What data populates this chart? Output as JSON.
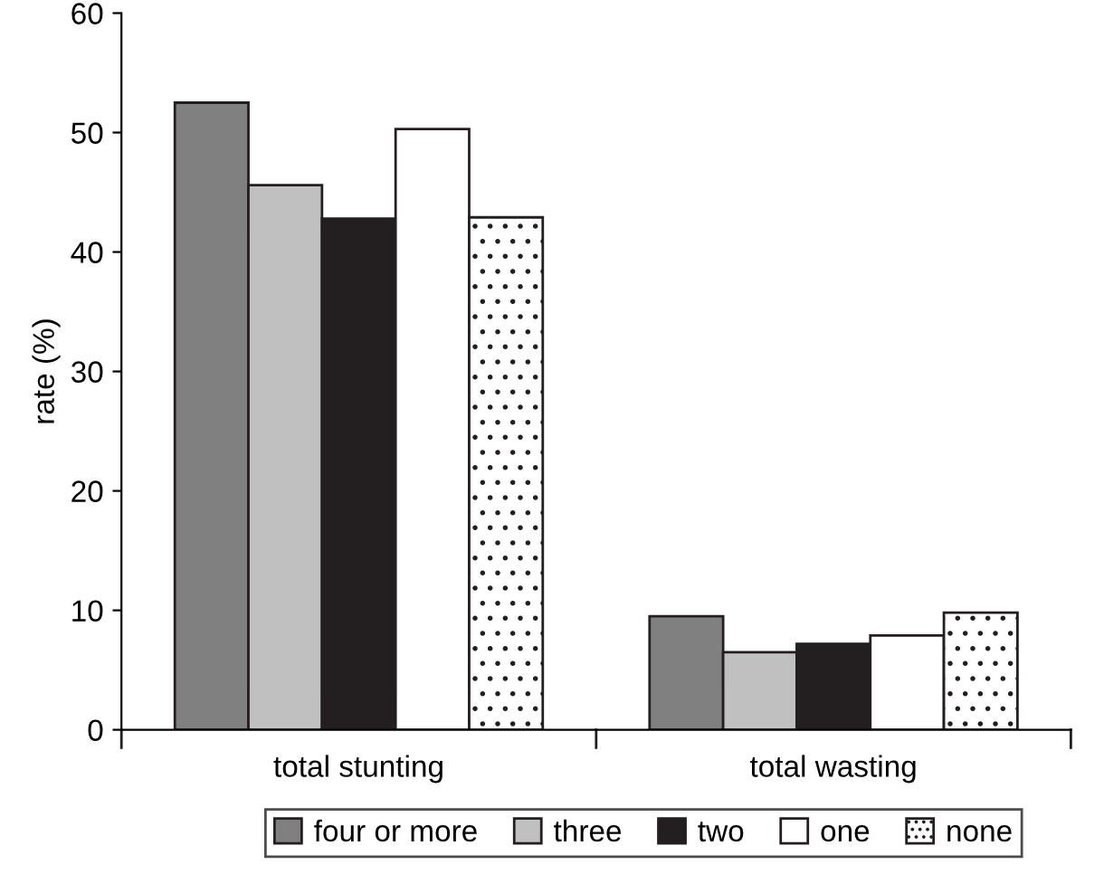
{
  "chart_data": {
    "type": "bar",
    "ylabel": "rate (%)",
    "categories": [
      "total stunting",
      "total wasting"
    ],
    "series": [
      {
        "name": "four or more",
        "color": "#808080",
        "values": [
          52.5,
          9.5
        ]
      },
      {
        "name": "three",
        "color": "#c0c0c0",
        "values": [
          45.6,
          6.5
        ]
      },
      {
        "name": "two",
        "color": "#231f20",
        "values": [
          42.8,
          7.2
        ]
      },
      {
        "name": "one",
        "color": "#ffffff",
        "values": [
          50.3,
          7.9
        ]
      },
      {
        "name": "none",
        "color": "#ffffff",
        "values": [
          42.9,
          9.8
        ]
      }
    ],
    "ylim": [
      0,
      60
    ],
    "yticks": [
      0,
      10,
      20,
      30,
      40,
      50,
      60
    ],
    "grid": false,
    "legend": "bottom"
  }
}
